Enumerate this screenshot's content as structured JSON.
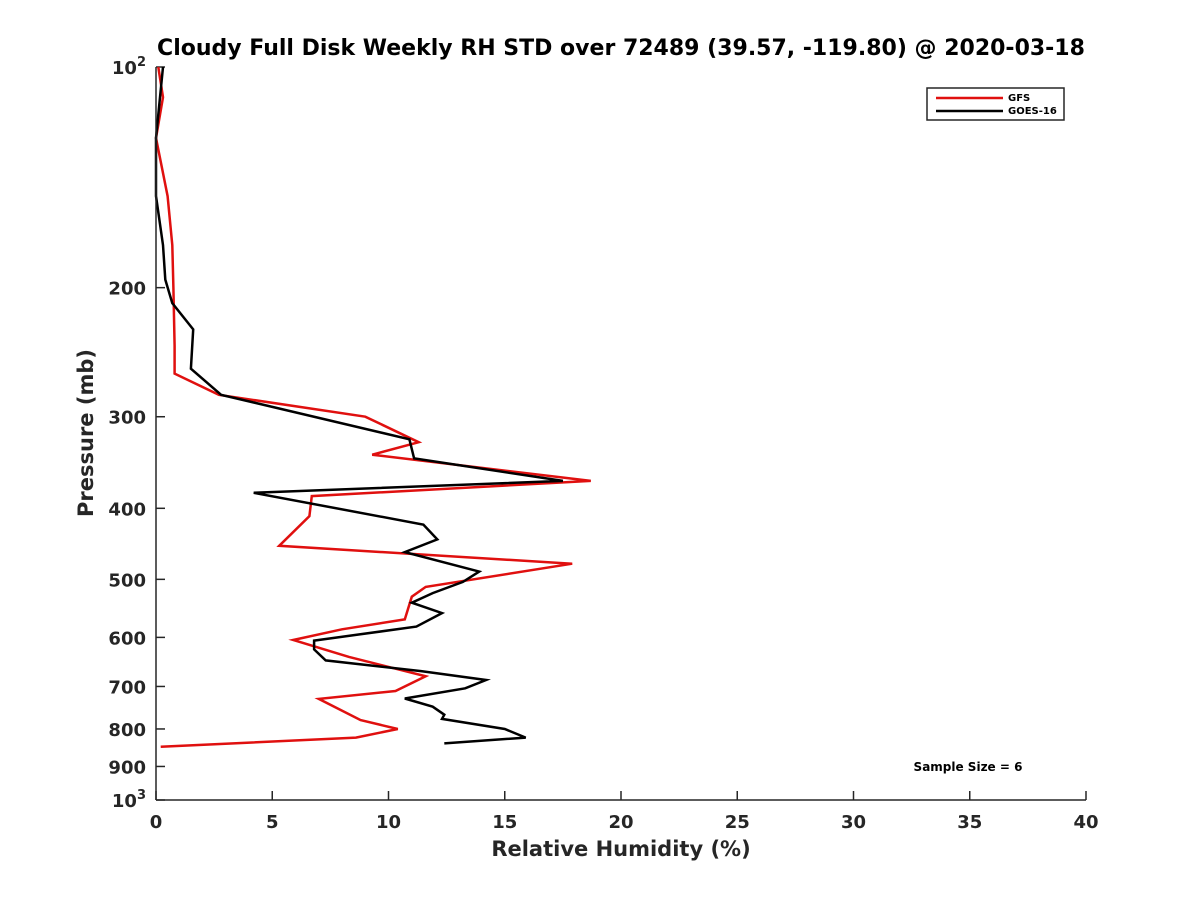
{
  "chart_data": {
    "type": "line",
    "title": "Cloudy Full Disk Weekly RH STD over 72489 (39.57, -119.80) @ 2020-03-18",
    "xlabel": "Relative Humidity (%)",
    "ylabel": "Pressure (mb)",
    "xlim": [
      0,
      40
    ],
    "ylim": [
      100,
      1000
    ],
    "y_scale": "log",
    "y_reversed": true,
    "x_ticks": [
      0,
      5,
      10,
      15,
      20,
      25,
      30,
      35,
      40
    ],
    "x_tick_labels": [
      "0",
      "5",
      "10",
      "15",
      "20",
      "25",
      "30",
      "35",
      "40"
    ],
    "y_ticks": [
      100,
      200,
      300,
      400,
      500,
      600,
      700,
      800,
      900,
      1000
    ],
    "y_tick_labels": [
      {
        "base": "10",
        "sup": "2"
      },
      {
        "base": "200",
        "sup": ""
      },
      {
        "base": "300",
        "sup": ""
      },
      {
        "base": "400",
        "sup": ""
      },
      {
        "base": "500",
        "sup": ""
      },
      {
        "base": "600",
        "sup": ""
      },
      {
        "base": "700",
        "sup": ""
      },
      {
        "base": "800",
        "sup": ""
      },
      {
        "base": "900",
        "sup": ""
      },
      {
        "base": "10",
        "sup": "3"
      }
    ],
    "grid": false,
    "legend_position": "top-right",
    "annotation": "Sample Size = 6",
    "series": [
      {
        "name": "GFS",
        "color": "#e0100f",
        "points": [
          [
            0.1,
            100
          ],
          [
            0.3,
            110
          ],
          [
            0.0,
            125
          ],
          [
            0.5,
            150
          ],
          [
            0.7,
            175
          ],
          [
            0.75,
            200
          ],
          [
            0.8,
            240
          ],
          [
            0.8,
            262
          ],
          [
            2.7,
            280
          ],
          [
            9.0,
            300
          ],
          [
            11.3,
            325
          ],
          [
            9.3,
            338
          ],
          [
            18.7,
            367
          ],
          [
            6.7,
            385
          ],
          [
            6.6,
            410
          ],
          [
            5.3,
            450
          ],
          [
            17.9,
            476
          ],
          [
            11.6,
            512
          ],
          [
            11.0,
            528
          ],
          [
            10.7,
            567
          ],
          [
            8.0,
            585
          ],
          [
            5.9,
            605
          ],
          [
            8.3,
            638
          ],
          [
            11.6,
            678
          ],
          [
            10.3,
            710
          ],
          [
            7.0,
            728
          ],
          [
            8.8,
            778
          ],
          [
            10.4,
            800
          ],
          [
            8.6,
            822
          ],
          [
            0.2,
            846
          ]
        ]
      },
      {
        "name": "GOES-16",
        "color": "#000000",
        "points": [
          [
            0.3,
            100
          ],
          [
            0.0,
            125
          ],
          [
            0.0,
            150
          ],
          [
            0.3,
            175
          ],
          [
            0.4,
            195
          ],
          [
            0.7,
            210
          ],
          [
            1.6,
            228
          ],
          [
            1.5,
            258
          ],
          [
            2.8,
            280
          ],
          [
            10.9,
            322
          ],
          [
            11.1,
            342
          ],
          [
            17.5,
            367
          ],
          [
            4.2,
            381
          ],
          [
            11.5,
            421
          ],
          [
            12.1,
            441
          ],
          [
            10.7,
            459
          ],
          [
            13.9,
            488
          ],
          [
            13.2,
            504
          ],
          [
            11.9,
            522
          ],
          [
            11.0,
            538
          ],
          [
            12.3,
            556
          ],
          [
            11.2,
            580
          ],
          [
            6.8,
            606
          ],
          [
            6.8,
            623
          ],
          [
            7.3,
            645
          ],
          [
            11.4,
            667
          ],
          [
            14.2,
            686
          ],
          [
            13.3,
            704
          ],
          [
            10.7,
            727
          ],
          [
            11.9,
            746
          ],
          [
            12.4,
            765
          ],
          [
            12.3,
            775
          ],
          [
            15.0,
            800
          ],
          [
            15.9,
            822
          ],
          [
            12.4,
            837
          ]
        ]
      }
    ]
  }
}
